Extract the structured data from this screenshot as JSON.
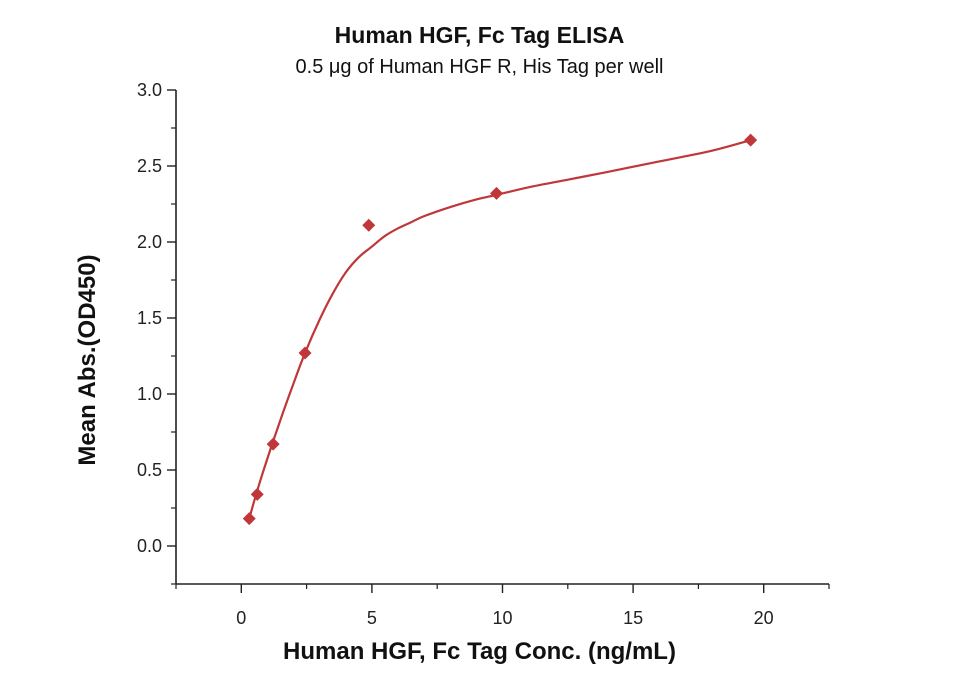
{
  "chart_data": {
    "type": "scatter",
    "title": "Human HGF, Fc Tag ELISA",
    "subtitle": "0.5 μg of Human HGF R, His Tag per well",
    "xlabel": "Human HGF, Fc Tag Conc. (ng/mL)",
    "ylabel": "Mean Abs.(OD450)",
    "xlim": [
      -2.5,
      22.5
    ],
    "ylim": [
      -0.25,
      3.0
    ],
    "xticks": [
      "0",
      "5",
      "10",
      "15",
      "20"
    ],
    "yticks": [
      "0.0",
      "0.5",
      "1.0",
      "1.5",
      "2.0",
      "2.5",
      "3.0"
    ],
    "grid": false,
    "colors": {
      "series": "#c0373a",
      "axis": "#222222"
    },
    "series": [
      {
        "marker": "diamond",
        "x": [
          0.305,
          0.61,
          1.22,
          2.44,
          4.88,
          9.77,
          19.5
        ],
        "y": [
          0.18,
          0.34,
          0.67,
          1.27,
          2.11,
          2.32,
          2.67
        ]
      }
    ],
    "fit_curve": {
      "x": [
        0.305,
        0.5,
        0.8,
        1.2,
        1.6,
        2.0,
        2.44,
        3.0,
        3.5,
        4.0,
        4.5,
        5.0,
        5.5,
        6.0,
        6.5,
        7.0,
        8.0,
        9.0,
        9.77,
        11.0,
        12.5,
        14.0,
        16.0,
        18.0,
        19.5
      ],
      "y": [
        0.18,
        0.3,
        0.47,
        0.68,
        0.88,
        1.07,
        1.27,
        1.49,
        1.66,
        1.8,
        1.9,
        1.97,
        2.04,
        2.09,
        2.13,
        2.17,
        2.23,
        2.28,
        2.31,
        2.36,
        2.41,
        2.46,
        2.53,
        2.6,
        2.67
      ]
    }
  }
}
